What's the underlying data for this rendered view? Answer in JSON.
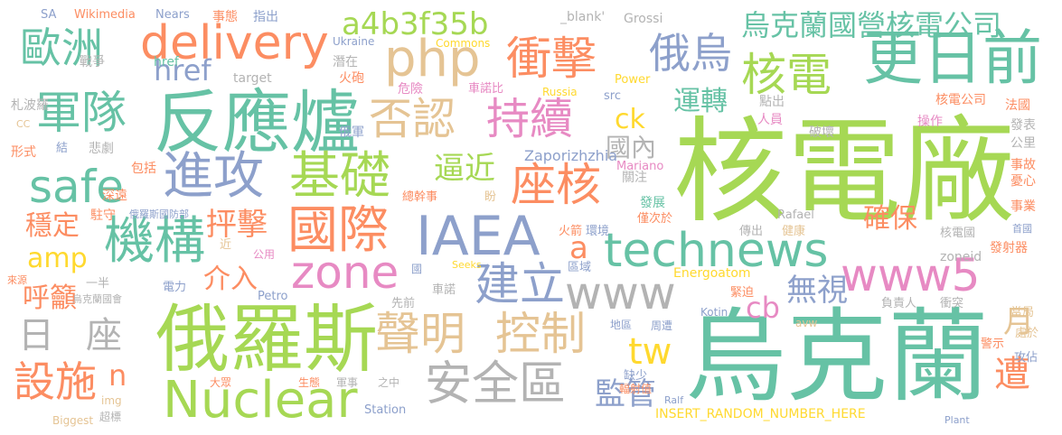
{
  "palette": [
    "#66c2a5",
    "#fc8d62",
    "#8da0cb",
    "#e78ac3",
    "#a6d854",
    "#ffd92f",
    "#e5c494",
    "#b3b3b3"
  ],
  "words": [
    {
      "text": "核電廠",
      "color": "#a6d854"
    },
    {
      "text": "烏克蘭",
      "color": "#66c2a5"
    },
    {
      "text": "俄羅斯",
      "color": "#a6d854"
    },
    {
      "text": "反應爐",
      "color": "#66c2a5"
    },
    {
      "text": "更日前",
      "color": "#66c2a5"
    },
    {
      "text": "IAEA",
      "color": "#8da0cb"
    },
    {
      "text": "technews",
      "color": "#66c2a5"
    },
    {
      "text": "Nuclear",
      "color": "#a6d854"
    },
    {
      "text": "軍隊",
      "color": "#66c2a5"
    },
    {
      "text": "delivery",
      "color": "#fc8d62"
    },
    {
      "text": "進攻",
      "color": "#8da0cb"
    },
    {
      "text": "基礎",
      "color": "#a6d854"
    },
    {
      "text": "國際",
      "color": "#fc8d62"
    },
    {
      "text": "機構",
      "color": "#66c2a5"
    },
    {
      "text": "安全區",
      "color": "#b3b3b3"
    },
    {
      "text": "www",
      "color": "#b3b3b3"
    },
    {
      "text": "php",
      "color": "#e5c494"
    },
    {
      "text": "zone",
      "color": "#e78ac3"
    },
    {
      "text": "聲明",
      "color": "#e5c494"
    },
    {
      "text": "控制",
      "color": "#e5c494"
    },
    {
      "text": "否認",
      "color": "#e5c494"
    },
    {
      "text": "持續",
      "color": "#e78ac3"
    },
    {
      "text": "衝擊",
      "color": "#fc8d62"
    },
    {
      "text": "俄烏",
      "color": "#8da0cb"
    },
    {
      "text": "核電",
      "color": "#a6d854"
    },
    {
      "text": "www5",
      "color": "#e78ac3"
    },
    {
      "text": "建立",
      "color": "#8da0cb"
    },
    {
      "text": "座核",
      "color": "#fc8d62"
    },
    {
      "text": "safe",
      "color": "#66c2a5"
    },
    {
      "text": "歐洲",
      "color": "#66c2a5"
    },
    {
      "text": "a4b3f35b",
      "color": "#a6d854"
    },
    {
      "text": "烏克蘭國營核電公司",
      "color": "#66c2a5"
    },
    {
      "text": "設施",
      "color": "#fc8d62"
    },
    {
      "text": "日",
      "color": "#b3b3b3"
    },
    {
      "text": "座",
      "color": "#b3b3b3"
    },
    {
      "text": "遭",
      "color": "#fc8d62"
    },
    {
      "text": "tw",
      "color": "#ffd92f"
    },
    {
      "text": "監管",
      "color": "#8da0cb"
    },
    {
      "text": "逼近",
      "color": "#a6d854"
    },
    {
      "text": "抨擊",
      "color": "#fc8d62"
    },
    {
      "text": "無視",
      "color": "#8da0cb"
    },
    {
      "text": "運轉",
      "color": "#66c2a5"
    },
    {
      "text": "確保",
      "color": "#fc8d62"
    },
    {
      "text": "介入",
      "color": "#fc8d62"
    },
    {
      "text": "呼籲",
      "color": "#fc8d62"
    },
    {
      "text": "穩定",
      "color": "#fc8d62"
    },
    {
      "text": "href",
      "color": "#8da0cb"
    },
    {
      "text": "amp",
      "color": "#ffd92f"
    },
    {
      "text": "ck",
      "color": "#ffd92f"
    },
    {
      "text": "cb",
      "color": "#e78ac3"
    },
    {
      "text": "國內",
      "color": "#b3b3b3"
    },
    {
      "text": "月",
      "color": "#e5c494"
    },
    {
      "text": "n",
      "color": "#fc8d62"
    },
    {
      "text": "a",
      "color": "#fc8d62"
    },
    {
      "text": "Zaporizhzhia",
      "color": "#8da0cb"
    },
    {
      "text": "INSERT_RANDOM_NUMBER_HERE",
      "color": "#ffd92f"
    },
    {
      "text": "Energoatom",
      "color": "#ffd92f"
    },
    {
      "text": "SA",
      "color": "#8da0cb"
    },
    {
      "text": "Wikimedia",
      "color": "#fc8d62"
    },
    {
      "text": "Nears",
      "color": "#8da0cb"
    },
    {
      "text": "事態",
      "color": "#fc8d62"
    },
    {
      "text": "指出",
      "color": "#8da0cb"
    },
    {
      "text": "_blank'",
      "color": "#b3b3b3"
    },
    {
      "text": "Grossi",
      "color": "#b3b3b3"
    },
    {
      "text": "Ukraine",
      "color": "#8da0cb"
    },
    {
      "text": "Commons",
      "color": "#ffd92f"
    },
    {
      "text": "戰爭",
      "color": "#b3b3b3"
    },
    {
      "text": "href",
      "color": "#66c2a5"
    },
    {
      "text": "target",
      "color": "#b3b3b3"
    },
    {
      "text": "潛在",
      "color": "#b3b3b3"
    },
    {
      "text": "火砲",
      "color": "#fc8d62"
    },
    {
      "text": "危險",
      "color": "#e78ac3"
    },
    {
      "text": "車諾比",
      "color": "#e78ac3"
    },
    {
      "text": "Russia",
      "color": "#ffd92f"
    },
    {
      "text": "Power",
      "color": "#ffd92f"
    },
    {
      "text": "src",
      "color": "#8da0cb"
    },
    {
      "text": "點出",
      "color": "#b3b3b3"
    },
    {
      "text": "人員",
      "color": "#e78ac3"
    },
    {
      "text": "核電公司",
      "color": "#fc8d62"
    },
    {
      "text": "法國",
      "color": "#fc8d62"
    },
    {
      "text": "破壞",
      "color": "#b3b3b3"
    },
    {
      "text": "操作",
      "color": "#e78ac3"
    },
    {
      "text": "札波羅",
      "color": "#b3b3b3"
    },
    {
      "text": "CC",
      "color": "#e5c494"
    },
    {
      "text": "結",
      "color": "#8da0cb"
    },
    {
      "text": "形式",
      "color": "#fc8d62"
    },
    {
      "text": "悲劇",
      "color": "#b3b3b3"
    },
    {
      "text": "包括",
      "color": "#fc8d62"
    },
    {
      "text": "俄軍",
      "color": "#8da0cb"
    },
    {
      "text": "Mariano",
      "color": "#e78ac3"
    },
    {
      "text": "關注",
      "color": "#b3b3b3"
    },
    {
      "text": "發表",
      "color": "#b3b3b3"
    },
    {
      "text": "公里",
      "color": "#b3b3b3"
    },
    {
      "text": "事故",
      "color": "#fc8d62"
    },
    {
      "text": "憂心",
      "color": "#fc8d62"
    },
    {
      "text": "事業",
      "color": "#fc8d62"
    },
    {
      "text": "深遠",
      "color": "#fc8d62"
    },
    {
      "text": "總幹事",
      "color": "#fc8d62"
    },
    {
      "text": "盼",
      "color": "#e5c494"
    },
    {
      "text": "發展",
      "color": "#66c2a5"
    },
    {
      "text": "駐守",
      "color": "#fc8d62"
    },
    {
      "text": "俄羅斯國防部",
      "color": "#8da0cb"
    },
    {
      "text": "僅次於",
      "color": "#fc8d62"
    },
    {
      "text": "Rafael",
      "color": "#b3b3b3"
    },
    {
      "text": "火箭",
      "color": "#fc8d62"
    },
    {
      "text": "環境",
      "color": "#8da0cb"
    },
    {
      "text": "傳出",
      "color": "#b3b3b3"
    },
    {
      "text": "健康",
      "color": "#e5c494"
    },
    {
      "text": "核電國",
      "color": "#b3b3b3"
    },
    {
      "text": "首國",
      "color": "#8da0cb"
    },
    {
      "text": "近",
      "color": "#e5c494"
    },
    {
      "text": "公用",
      "color": "#e78ac3"
    },
    {
      "text": "發射器",
      "color": "#fc8d62"
    },
    {
      "text": "zoneid",
      "color": "#b3b3b3"
    },
    {
      "text": "來源",
      "color": "#fc8d62"
    },
    {
      "text": "國",
      "color": "#8da0cb"
    },
    {
      "text": "Seeks",
      "color": "#ffd92f"
    },
    {
      "text": "區域",
      "color": "#8da0cb"
    },
    {
      "text": "電力",
      "color": "#8da0cb"
    },
    {
      "text": "一半",
      "color": "#b3b3b3"
    },
    {
      "text": "烏克蘭國會",
      "color": "#b3b3b3"
    },
    {
      "text": "先前",
      "color": "#b3b3b3"
    },
    {
      "text": "車諾",
      "color": "#b3b3b3"
    },
    {
      "text": "Petro",
      "color": "#8da0cb"
    },
    {
      "text": "緊迫",
      "color": "#fc8d62"
    },
    {
      "text": "負責人",
      "color": "#b3b3b3"
    },
    {
      "text": "衝突",
      "color": "#b3b3b3"
    },
    {
      "text": "當局",
      "color": "#e5c494"
    },
    {
      "text": "Kotin",
      "color": "#8da0cb"
    },
    {
      "text": "avw",
      "color": "#e5c494"
    },
    {
      "text": "地區",
      "color": "#8da0cb"
    },
    {
      "text": "周遭",
      "color": "#8da0cb"
    },
    {
      "text": "處於",
      "color": "#e5c494"
    },
    {
      "text": "警示",
      "color": "#fc8d62"
    },
    {
      "text": "攻佔",
      "color": "#8da0cb"
    },
    {
      "text": "大眾",
      "color": "#fc8d62"
    },
    {
      "text": "生態",
      "color": "#fc8d62"
    },
    {
      "text": "軍事",
      "color": "#b3b3b3"
    },
    {
      "text": "之中",
      "color": "#b3b3b3"
    },
    {
      "text": "缺少",
      "color": "#8da0cb"
    },
    {
      "text": "輻射值",
      "color": "#fc8d62"
    },
    {
      "text": "img",
      "color": "#e5c494"
    },
    {
      "text": "超標",
      "color": "#b3b3b3"
    },
    {
      "text": "Biggest",
      "color": "#e5c494"
    },
    {
      "text": "Station",
      "color": "#8da0cb"
    },
    {
      "text": "Ralf",
      "color": "#8da0cb"
    },
    {
      "text": "Plant",
      "color": "#8da0cb"
    }
  ]
}
